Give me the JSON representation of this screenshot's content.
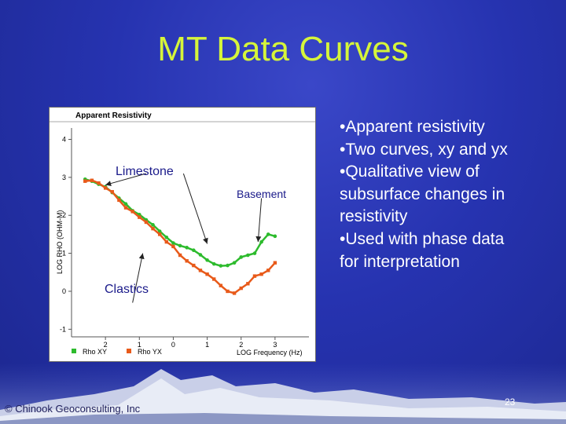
{
  "slide": {
    "title": "MT Data Curves",
    "bullets": [
      "•Apparent resistivity",
      "•Two curves, xy and yx",
      "•Qualitative view of",
      "subsurface changes in",
      "resistivity",
      "•Used with phase data",
      "for interpretation"
    ],
    "copyright": "© Chinook Geoconsulting, Inc",
    "page_number": "23"
  },
  "colors": {
    "title": "#d6f53a",
    "rho_xy": "#2dbb2d",
    "rho_yx": "#e85a1a",
    "background": "#2633b0"
  },
  "chart_data": {
    "type": "line",
    "title": "Apparent Resistivity",
    "xlabel": "LOG Frequency (Hz)",
    "ylabel": "LOG RHO (OHM-M)",
    "xlim": [
      -3,
      4
    ],
    "ylim": [
      -1.2,
      4.3
    ],
    "x_ticks": [
      -2,
      -1,
      0,
      1,
      2,
      3
    ],
    "x_tick_labels": [
      "2",
      "1",
      "0",
      "1",
      "2",
      "3"
    ],
    "y_ticks": [
      -1,
      0,
      1,
      2,
      3,
      4
    ],
    "y_tick_labels": [
      "-1",
      "0",
      "1",
      "2",
      "3",
      "4"
    ],
    "grid": false,
    "legend_position": "bottom-left",
    "series": [
      {
        "name": "Rho XY",
        "x": [
          -2.6,
          -2.4,
          -2.2,
          -2.0,
          -1.8,
          -1.6,
          -1.4,
          -1.2,
          -1.0,
          -0.8,
          -0.6,
          -0.4,
          -0.2,
          0.0,
          0.2,
          0.4,
          0.6,
          0.8,
          1.0,
          1.2,
          1.4,
          1.6,
          1.8,
          2.0,
          2.2,
          2.4,
          2.6,
          2.8,
          3.0
        ],
        "y": [
          2.95,
          2.9,
          2.82,
          2.75,
          2.6,
          2.45,
          2.3,
          2.12,
          2.02,
          1.88,
          1.75,
          1.58,
          1.42,
          1.27,
          1.2,
          1.15,
          1.08,
          0.96,
          0.82,
          0.72,
          0.67,
          0.68,
          0.75,
          0.9,
          0.95,
          1.0,
          1.3,
          1.5,
          1.45
        ]
      },
      {
        "name": "Rho YX",
        "x": [
          -2.6,
          -2.4,
          -2.2,
          -2.0,
          -1.8,
          -1.6,
          -1.4,
          -1.2,
          -1.0,
          -0.8,
          -0.6,
          -0.4,
          -0.2,
          0.0,
          0.2,
          0.4,
          0.6,
          0.8,
          1.0,
          1.2,
          1.4,
          1.6,
          1.8,
          2.0,
          2.2,
          2.4,
          2.6,
          2.8,
          3.0
        ],
        "y": [
          2.9,
          2.92,
          2.85,
          2.72,
          2.62,
          2.4,
          2.2,
          2.1,
          1.95,
          1.82,
          1.65,
          1.5,
          1.3,
          1.18,
          0.95,
          0.8,
          0.68,
          0.55,
          0.45,
          0.32,
          0.15,
          0.0,
          -0.05,
          0.08,
          0.2,
          0.4,
          0.45,
          0.55,
          0.75
        ]
      }
    ],
    "annotations": [
      {
        "text": "Limestone",
        "color": "#1a1a8a",
        "font_size": 16,
        "arrows": [
          {
            "from": [
              -0.8,
              3.1
            ],
            "to": [
              -2.0,
              2.8
            ]
          },
          {
            "from": [
              0.3,
              3.1
            ],
            "to": [
              1.0,
              1.25
            ]
          }
        ]
      },
      {
        "text": "Basement",
        "color": "#1a1a8a",
        "font_size": 14,
        "arrows": [
          {
            "from": [
              2.6,
              2.45
            ],
            "to": [
              2.5,
              1.3
            ]
          }
        ]
      },
      {
        "text": "Clastics",
        "color": "#1a1a8a",
        "font_size": 16,
        "arrows": [
          {
            "from": [
              -1.2,
              -0.3
            ],
            "to": [
              -0.9,
              1.0
            ]
          }
        ]
      }
    ]
  }
}
